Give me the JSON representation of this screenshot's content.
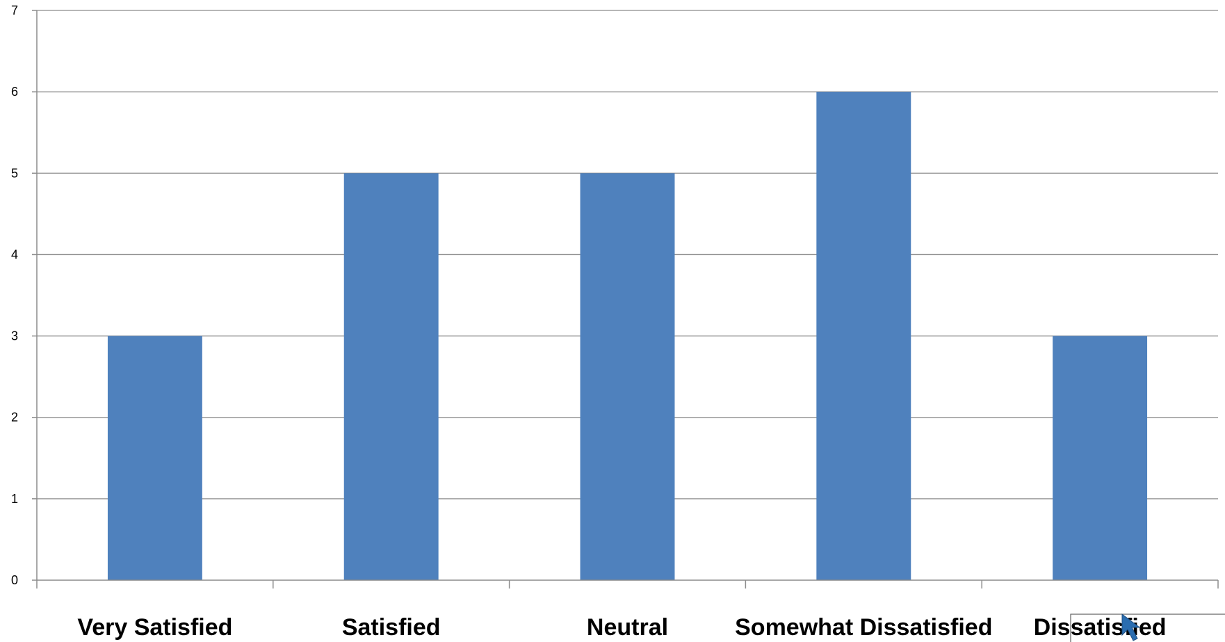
{
  "chart_data": {
    "type": "bar",
    "categories": [
      "Very Satisfied",
      "Satisfied",
      "Neutral",
      "Somewhat Dissatisfied",
      "Dissatisfied"
    ],
    "values": [
      3,
      5,
      5,
      6,
      3
    ],
    "ylim": [
      0,
      7
    ],
    "yticks": [
      "0",
      "1",
      "2",
      "3",
      "4",
      "5",
      "6",
      "7"
    ],
    "grid": true,
    "bar_color": "#4f81bd"
  }
}
